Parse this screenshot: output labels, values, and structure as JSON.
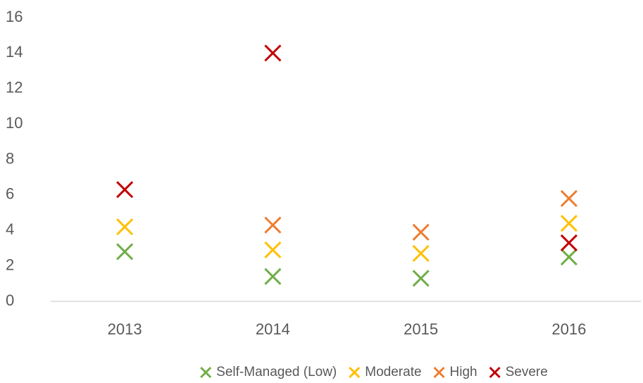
{
  "chart_data": {
    "type": "scatter",
    "categories": [
      "2013",
      "2014",
      "2015",
      "2016"
    ],
    "series": [
      {
        "name": "Self-Managed (Low)",
        "color": "#70ad47",
        "values": [
          2.8,
          1.4,
          1.3,
          2.5
        ]
      },
      {
        "name": "Moderate",
        "color": "#ffc000",
        "values": [
          4.2,
          2.9,
          2.7,
          4.4
        ]
      },
      {
        "name": "High",
        "color": "#ed7d31",
        "values": [
          null,
          4.3,
          3.9,
          5.8
        ]
      },
      {
        "name": "Severe",
        "color": "#c00000",
        "values": [
          6.3,
          14.0,
          null,
          3.3
        ]
      }
    ],
    "ylim": [
      0,
      16
    ],
    "yticks": [
      0,
      2,
      4,
      6,
      8,
      10,
      12,
      14,
      16
    ],
    "grid": false,
    "legend": "bottom"
  }
}
